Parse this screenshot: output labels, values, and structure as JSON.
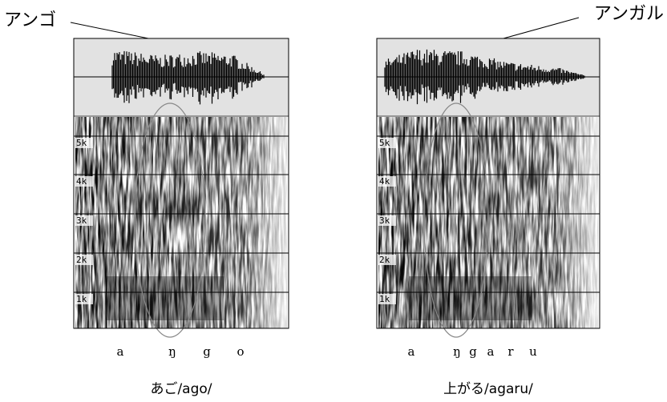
{
  "panels": [
    {
      "heading": "アンゴ",
      "freq_labels": [
        "5k",
        "4k",
        "3k",
        "2k",
        "1k"
      ],
      "phonemes": [
        "a",
        "ŋ",
        "g",
        "o"
      ],
      "caption": "あご/ago/"
    },
    {
      "heading": "アンガル",
      "freq_labels": [
        "5k",
        "4k",
        "3k",
        "2k",
        "1k"
      ],
      "phonemes": [
        "a",
        "ŋ",
        "g",
        "a",
        "r",
        "u"
      ],
      "caption": "上がる/agaru/"
    }
  ]
}
